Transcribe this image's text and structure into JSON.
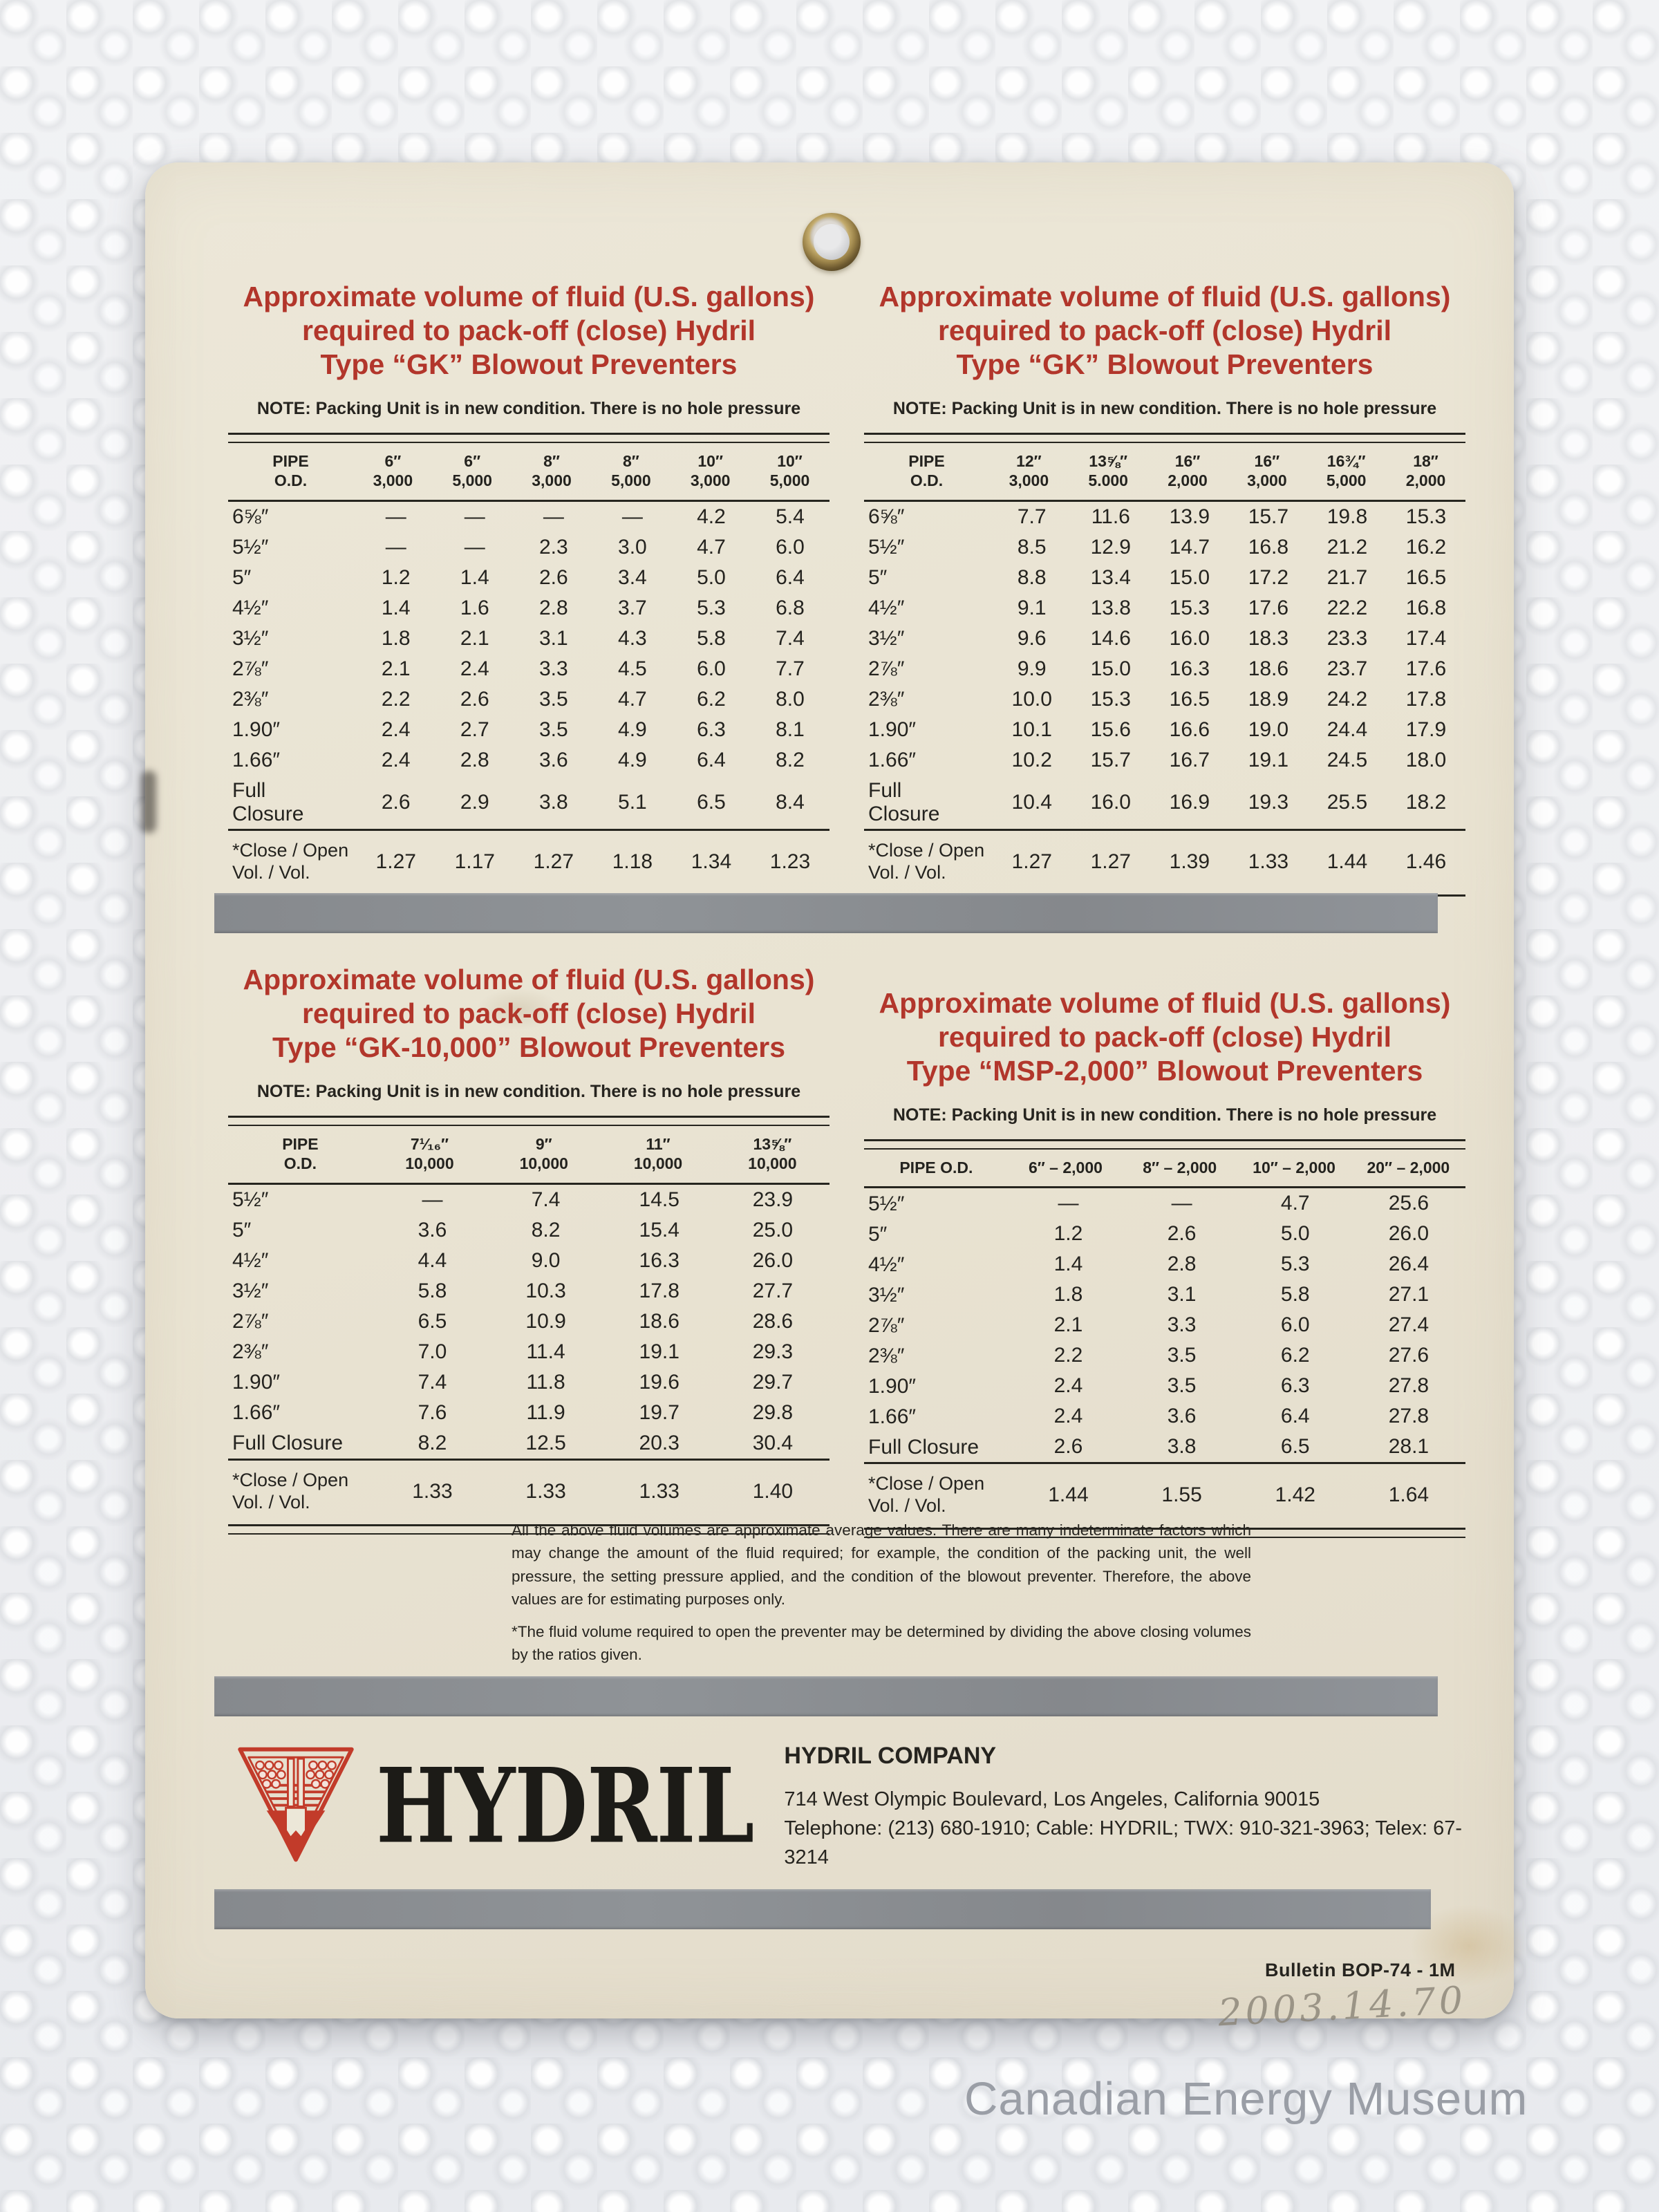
{
  "watermark": "Canadian Energy Museum",
  "card": {
    "bulletin": "Bulletin BOP-74 - 1M",
    "accession_number": "2003.14.70"
  },
  "colors": {
    "title_red": "#b2362b",
    "logo_red": "#c23b2a",
    "card_cream": "#e9e3d2",
    "separator_gray": "#8b8f93",
    "ink_black": "#26241f"
  },
  "footnotes": {
    "main": "All the above fluid volumes are approximate average values. There are many indeterminate factors which may change the amount of the fluid required; for example, the condition of the packing unit, the well pressure, the setting pressure applied, and the condition of the blowout preventer. Therefore, the above values are for estimating purposes only.",
    "open_note": "*The fluid volume required to open the preventer may be determined by dividing the above closing volumes by the ratios given."
  },
  "company": {
    "wordmark": "HYDRIL",
    "name": "HYDRIL COMPANY",
    "address": "714 West Olympic Boulevard, Los Angeles, California 90015",
    "contact": "Telephone: (213) 680-1910; Cable: HYDRIL; TWX: 910-321-3963; Telex: 67-3214"
  },
  "tables": [
    {
      "title": "Approximate volume of fluid (U.S. gallons)\nrequired to pack-off (close) Hydril\nType “GK” Blowout Preventers",
      "note": "NOTE: Packing Unit is in new condition. There is no hole pressure",
      "headers": [
        "PIPE\nO.D.",
        "6″\n3,000",
        "6″\n5,000",
        "8″\n3,000",
        "8″\n5,000",
        "10″\n3,000",
        "10″\n5,000"
      ],
      "rows": [
        [
          "6⅝″",
          "—",
          "—",
          "—",
          "—",
          "4.2",
          "5.4"
        ],
        [
          "5½″",
          "—",
          "—",
          "2.3",
          "3.0",
          "4.7",
          "6.0"
        ],
        [
          "5″",
          "1.2",
          "1.4",
          "2.6",
          "3.4",
          "5.0",
          "6.4"
        ],
        [
          "4½″",
          "1.4",
          "1.6",
          "2.8",
          "3.7",
          "5.3",
          "6.8"
        ],
        [
          "3½″",
          "1.8",
          "2.1",
          "3.1",
          "4.3",
          "5.8",
          "7.4"
        ],
        [
          "2⅞″",
          "2.1",
          "2.4",
          "3.3",
          "4.5",
          "6.0",
          "7.7"
        ],
        [
          "2⅜″",
          "2.2",
          "2.6",
          "3.5",
          "4.7",
          "6.2",
          "8.0"
        ],
        [
          "1.90″",
          "2.4",
          "2.7",
          "3.5",
          "4.9",
          "6.3",
          "8.1"
        ],
        [
          "1.66″",
          "2.4",
          "2.8",
          "3.6",
          "4.9",
          "6.4",
          "8.2"
        ],
        [
          "Full\nClosure",
          "2.6",
          "2.9",
          "3.8",
          "5.1",
          "6.5",
          "8.4"
        ]
      ],
      "ratio_label": "*Close / Open\nVol.  /  Vol.",
      "ratio_values": [
        "1.27",
        "1.17",
        "1.27",
        "1.18",
        "1.34",
        "1.23"
      ]
    },
    {
      "title": "Approximate volume of fluid (U.S. gallons)\nrequired to pack-off (close) Hydril\nType “GK” Blowout Preventers",
      "note": "NOTE: Packing Unit is in new condition. There is no hole pressure",
      "headers": [
        "PIPE\nO.D.",
        "12″\n3,000",
        "13⅝″\n5.000",
        "16″\n2,000",
        "16″\n3,000",
        "16¾″\n5,000",
        "18″\n2,000"
      ],
      "rows": [
        [
          "6⅝″",
          "7.7",
          "11.6",
          "13.9",
          "15.7",
          "19.8",
          "15.3"
        ],
        [
          "5½″",
          "8.5",
          "12.9",
          "14.7",
          "16.8",
          "21.2",
          "16.2"
        ],
        [
          "5″",
          "8.8",
          "13.4",
          "15.0",
          "17.2",
          "21.7",
          "16.5"
        ],
        [
          "4½″",
          "9.1",
          "13.8",
          "15.3",
          "17.6",
          "22.2",
          "16.8"
        ],
        [
          "3½″",
          "9.6",
          "14.6",
          "16.0",
          "18.3",
          "23.3",
          "17.4"
        ],
        [
          "2⅞″",
          "9.9",
          "15.0",
          "16.3",
          "18.6",
          "23.7",
          "17.6"
        ],
        [
          "2⅜″",
          "10.0",
          "15.3",
          "16.5",
          "18.9",
          "24.2",
          "17.8"
        ],
        [
          "1.90″",
          "10.1",
          "15.6",
          "16.6",
          "19.0",
          "24.4",
          "17.9"
        ],
        [
          "1.66″",
          "10.2",
          "15.7",
          "16.7",
          "19.1",
          "24.5",
          "18.0"
        ],
        [
          "Full\nClosure",
          "10.4",
          "16.0",
          "16.9",
          "19.3",
          "25.5",
          "18.2"
        ]
      ],
      "ratio_label": "*Close / Open\nVol.  /  Vol.",
      "ratio_values": [
        "1.27",
        "1.27",
        "1.39",
        "1.33",
        "1.44",
        "1.46"
      ]
    },
    {
      "title": "Approximate volume of fluid (U.S. gallons)\nrequired to pack-off (close) Hydril\nType “GK-10,000” Blowout Preventers",
      "note": "NOTE: Packing Unit is in new condition. There is no hole pressure",
      "headers": [
        "PIPE\nO.D.",
        "7¹⁄₁₆″\n10,000",
        "9″\n10,000",
        "11″\n10,000",
        "13⅝″\n10,000"
      ],
      "rows": [
        [
          "5½″",
          "—",
          "7.4",
          "14.5",
          "23.9"
        ],
        [
          "5″",
          "3.6",
          "8.2",
          "15.4",
          "25.0"
        ],
        [
          "4½″",
          "4.4",
          "9.0",
          "16.3",
          "26.0"
        ],
        [
          "3½″",
          "5.8",
          "10.3",
          "17.8",
          "27.7"
        ],
        [
          "2⅞″",
          "6.5",
          "10.9",
          "18.6",
          "28.6"
        ],
        [
          "2⅜″",
          "7.0",
          "11.4",
          "19.1",
          "29.3"
        ],
        [
          "1.90″",
          "7.4",
          "11.8",
          "19.6",
          "29.7"
        ],
        [
          "1.66″",
          "7.6",
          "11.9",
          "19.7",
          "29.8"
        ],
        [
          "Full Closure",
          "8.2",
          "12.5",
          "20.3",
          "30.4"
        ]
      ],
      "ratio_label": "*Close / Open\nVol.  /  Vol.",
      "ratio_values": [
        "1.33",
        "1.33",
        "1.33",
        "1.40"
      ]
    },
    {
      "title": "Approximate volume of fluid (U.S. gallons)\nrequired to pack-off (close) Hydril\nType “MSP-2,000” Blowout Preventers",
      "note": "NOTE: Packing Unit is in new condition. There is no hole pressure",
      "headers": [
        "PIPE O.D.",
        "6″ – 2,000",
        "8″ – 2,000",
        "10″ – 2,000",
        "20″ – 2,000"
      ],
      "rows": [
        [
          "5½″",
          "—",
          "—",
          "4.7",
          "25.6"
        ],
        [
          "5″",
          "1.2",
          "2.6",
          "5.0",
          "26.0"
        ],
        [
          "4½″",
          "1.4",
          "2.8",
          "5.3",
          "26.4"
        ],
        [
          "3½″",
          "1.8",
          "3.1",
          "5.8",
          "27.1"
        ],
        [
          "2⅞″",
          "2.1",
          "3.3",
          "6.0",
          "27.4"
        ],
        [
          "2⅜″",
          "2.2",
          "3.5",
          "6.2",
          "27.6"
        ],
        [
          "1.90″",
          "2.4",
          "3.5",
          "6.3",
          "27.8"
        ],
        [
          "1.66″",
          "2.4",
          "3.6",
          "6.4",
          "27.8"
        ],
        [
          "Full Closure",
          "2.6",
          "3.8",
          "6.5",
          "28.1"
        ]
      ],
      "ratio_label": "*Close / Open\nVol.  /  Vol.",
      "ratio_values": [
        "1.44",
        "1.55",
        "1.42",
        "1.64"
      ]
    }
  ]
}
